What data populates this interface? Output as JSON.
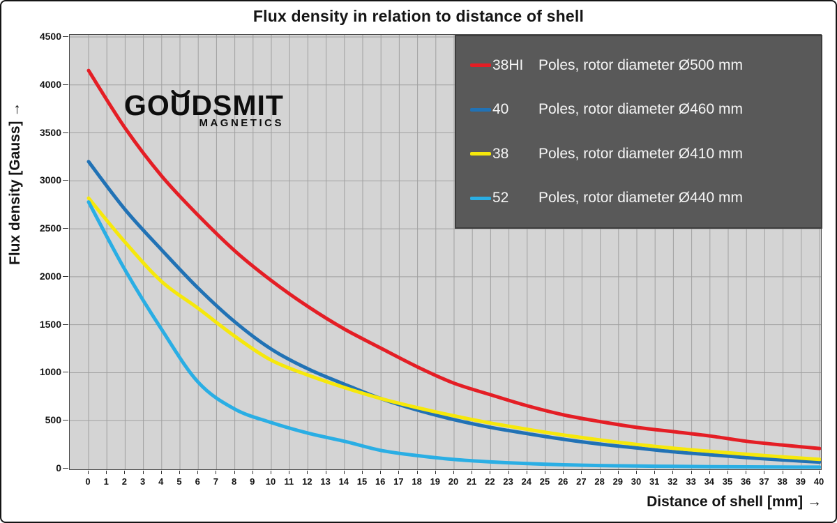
{
  "title": "Flux density in relation to distance of shell",
  "y_axis": {
    "title": "Flux density [Gauss] →",
    "ticks": [
      0,
      500,
      1000,
      1500,
      2000,
      2500,
      3000,
      3500,
      4000,
      4500
    ],
    "min": 0,
    "max": 4500
  },
  "x_axis": {
    "title": "Distance of shell [mm] →",
    "ticks": [
      0,
      1,
      2,
      3,
      4,
      5,
      6,
      7,
      8,
      9,
      10,
      11,
      12,
      13,
      14,
      15,
      16,
      17,
      18,
      19,
      20,
      21,
      22,
      23,
      24,
      25,
      26,
      27,
      28,
      29,
      30,
      31,
      32,
      33,
      34,
      35,
      36,
      37,
      38,
      39,
      40
    ],
    "min": 0,
    "max": 40
  },
  "logo": {
    "pre": "GO",
    "u": "U",
    "post": "DSMIT",
    "sub": "MAGNETICS"
  },
  "legend": {
    "items": [
      {
        "num": "38HI",
        "text": "Poles, rotor diameter Ø500 mm",
        "color": "#e41e25"
      },
      {
        "num": "40",
        "text": "Poles, rotor diameter Ø460 mm",
        "color": "#2172b5"
      },
      {
        "num": "38",
        "text": "Poles, rotor diameter Ø410 mm",
        "color": "#f6e80b"
      },
      {
        "num": "52",
        "text": "Poles, rotor diameter Ø440 mm",
        "color": "#2aaee4"
      }
    ]
  },
  "colors": {
    "plot_bg": "#d4d4d4",
    "grid": "#a0a0a0",
    "legend_bg": "#595959",
    "legend_border": "#3d3d3d",
    "red": "#e41e25",
    "blue": "#2172b5",
    "yellow": "#f6e80b",
    "cyan": "#2aaee4"
  },
  "chart_data": {
    "type": "line",
    "title": "Flux density in relation to distance of shell",
    "xlabel": "Distance of shell [mm]",
    "ylabel": "Flux density [Gauss]",
    "xlim": [
      0,
      40
    ],
    "ylim": [
      0,
      4500
    ],
    "grid": {
      "x_step": 1,
      "y_step": 500,
      "visible": true
    },
    "legend_position": "top-right",
    "x": [
      0,
      2,
      4,
      6,
      8,
      10,
      12,
      14,
      16,
      18,
      20,
      22,
      24,
      26,
      28,
      30,
      32,
      34,
      36,
      38,
      40
    ],
    "series": [
      {
        "name": "38HI Poles, rotor diameter Ø500 mm",
        "color": "#e41e25",
        "values": [
          4150,
          3550,
          3050,
          2640,
          2270,
          1960,
          1690,
          1455,
          1255,
          1060,
          890,
          770,
          655,
          560,
          490,
          430,
          385,
          340,
          285,
          245,
          210
        ]
      },
      {
        "name": "40 Poles, rotor diameter Ø460 mm",
        "color": "#2172b5",
        "values": [
          3200,
          2700,
          2280,
          1880,
          1530,
          1245,
          1040,
          880,
          730,
          610,
          510,
          430,
          365,
          305,
          255,
          215,
          175,
          145,
          115,
          90,
          68
        ]
      },
      {
        "name": "38 Poles, rotor diameter Ø410 mm",
        "color": "#f6e80b",
        "values": [
          2820,
          2360,
          1950,
          1670,
          1380,
          1130,
          975,
          845,
          730,
          635,
          550,
          475,
          410,
          350,
          298,
          252,
          213,
          180,
          150,
          122,
          97
        ]
      },
      {
        "name": "52 Poles, rotor diameter Ø440 mm",
        "color": "#2aaee4",
        "values": [
          2780,
          2070,
          1450,
          900,
          620,
          480,
          370,
          285,
          190,
          135,
          95,
          70,
          52,
          40,
          32,
          27,
          23,
          20,
          18,
          16,
          15
        ]
      }
    ]
  }
}
